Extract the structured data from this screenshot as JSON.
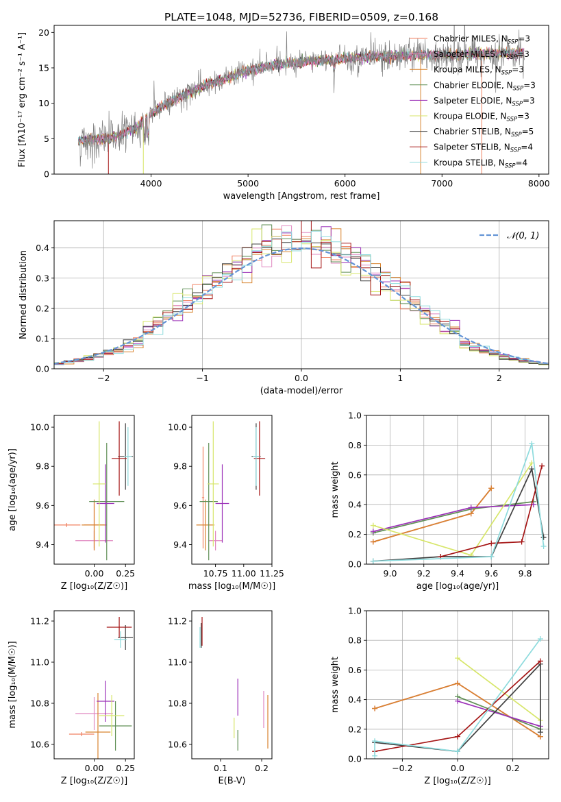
{
  "figure": {
    "title": "PLATE=1048, MJD=52736, FIBERID=0509, z=0.168"
  },
  "colors": {
    "chabrier_miles": "#f08060",
    "salpeter_miles": "#e087c0",
    "kroupa_miles": "#d8832e",
    "chabrier_elodie": "#5f8f55",
    "salpeter_elodie": "#9b30b8",
    "kroupa_elodie": "#d7e66a",
    "chabrier_stelib": "#404040",
    "salpeter_stelib": "#a51515",
    "kroupa_stelib": "#8ddbdd",
    "data_spectrum": "#808080",
    "normal_curve": "#6494d6"
  },
  "chart_data": [
    {
      "id": "spectrum",
      "type": "line",
      "xlabel": "wavelength [Angstrom, rest frame]",
      "ylabel": "Flux [fλ10⁻¹⁷ erg cm⁻² s⁻¹ A⁻¹]",
      "xlim": [
        3000,
        8100
      ],
      "ylim": [
        0,
        21
      ],
      "xticks": [
        4000,
        5000,
        6000,
        7000,
        8000
      ],
      "yticks": [
        0,
        5,
        10,
        15,
        20
      ],
      "legend_position": "top-right",
      "series": [
        {
          "name": "Chabrier MILES, N_SSP=3",
          "color_key": "chabrier_miles"
        },
        {
          "name": "Salpeter MILES, N_SSP=3",
          "color_key": "salpeter_miles"
        },
        {
          "name": "Kroupa MILES, N_SSP=3",
          "color_key": "kroupa_miles"
        },
        {
          "name": "Chabrier ELODIE, N_SSP=3",
          "color_key": "chabrier_elodie"
        },
        {
          "name": "Salpeter ELODIE, N_SSP=3",
          "color_key": "salpeter_elodie"
        },
        {
          "name": "Kroupa ELODIE, N_SSP=3",
          "color_key": "kroupa_elodie"
        },
        {
          "name": "Chabrier STELIB, N_SSP=5",
          "color_key": "chabrier_stelib"
        },
        {
          "name": "Salpeter STELIB, N_SSP=4",
          "color_key": "salpeter_stelib"
        },
        {
          "name": "Kroupa STELIB, N_SSP=4",
          "color_key": "kroupa_stelib"
        }
      ],
      "continuum": {
        "x": [
          3250,
          3400,
          3550,
          3700,
          3850,
          4000,
          4200,
          4400,
          4600,
          4800,
          5000,
          5200,
          5400,
          5600,
          5800,
          6000,
          6200,
          6400,
          6600,
          6800,
          7000,
          7200,
          7400,
          7600,
          7850
        ],
        "y": [
          4.6,
          4.9,
          5.0,
          5.6,
          6.6,
          8.6,
          10.3,
          11.5,
          12.8,
          13.6,
          14.6,
          15.2,
          15.6,
          15.8,
          16.1,
          16.3,
          16.5,
          16.6,
          16.7,
          16.8,
          16.8,
          16.9,
          17.0,
          17.0,
          17.1
        ]
      }
    },
    {
      "id": "residuals",
      "type": "histogram",
      "xlabel": "(data-model)/error",
      "ylabel": "Normed distribution",
      "xlim": [
        -2.5,
        2.5
      ],
      "ylim": [
        0,
        0.49
      ],
      "xticks": [
        -2,
        -1,
        0,
        1,
        2
      ],
      "yticks": [
        0.0,
        0.1,
        0.2,
        0.3,
        0.4
      ],
      "grid": true,
      "legend_position": "top-right",
      "reference_curve": {
        "name": "𝒩(0, 1)",
        "mean": 0,
        "sigma": 1
      },
      "bin_width": 0.1
    },
    {
      "id": "age_vs_Z",
      "type": "errorbar",
      "xlabel": "Z [log₁₀(Z/Z☉)]",
      "ylabel": "age  [log₁₀(age/yr)]",
      "xlim": [
        -0.32,
        0.32
      ],
      "ylim": [
        9.3,
        10.06
      ],
      "xticks": [
        0.0,
        0.25
      ],
      "yticks": [
        9.4,
        9.6,
        9.8,
        10.0
      ],
      "points": [
        {
          "key": "chabrier_miles",
          "x": 0.0,
          "xerr": 0.08,
          "y": 9.5,
          "yerr": 0.12
        },
        {
          "key": "salpeter_miles",
          "x": 0.0,
          "xerr": 0.15,
          "y": 9.42,
          "yerr": 0.05
        },
        {
          "key": "kroupa_miles",
          "x": 0.0,
          "xerr": 0.1,
          "y": 9.5,
          "yerr": 0.13
        },
        {
          "key": "chabrier_elodie",
          "x": 0.1,
          "xerr": 0.14,
          "y": 9.62,
          "yerr": 0.3
        },
        {
          "key": "salpeter_elodie",
          "x": 0.09,
          "xerr": 0.07,
          "y": 9.61,
          "yerr": 0.2
        },
        {
          "key": "kroupa_elodie",
          "x": 0.04,
          "xerr": 0.05,
          "y": 9.71,
          "yerr": 0.32
        },
        {
          "key": "chabrier_stelib",
          "x": 0.25,
          "xerr": 0.06,
          "y": 9.85,
          "yerr": 0.17
        },
        {
          "key": "salpeter_stelib",
          "x": 0.2,
          "xerr": 0.06,
          "y": 9.84,
          "yerr": 0.19
        },
        {
          "key": "kroupa_stelib",
          "x": 0.27,
          "xerr": 0.03,
          "y": 9.85,
          "yerr": 0.15
        },
        {
          "key": "chabrier_miles",
          "x": -0.22,
          "xerr": 0.11,
          "y": 9.5,
          "yerr": 0.01
        }
      ]
    },
    {
      "id": "age_vs_mass",
      "type": "errorbar",
      "xlabel": "mass [log₁₀(M/M☉)]",
      "ylabel": "",
      "xlim": [
        10.54,
        11.25
      ],
      "ylim": [
        9.3,
        10.06
      ],
      "xticks": [
        10.75,
        11.0,
        11.25
      ],
      "yticks": [
        9.4,
        9.6,
        9.8,
        10.0
      ],
      "points": [
        {
          "key": "chabrier_miles",
          "x": 10.64,
          "xerr": 0.01,
          "y": 9.64,
          "yerr": 0.26
        },
        {
          "key": "salpeter_miles",
          "x": 10.75,
          "xerr": 0.06,
          "y": 9.42,
          "yerr": 0.05
        },
        {
          "key": "kroupa_miles",
          "x": 10.66,
          "xerr": 0.08,
          "y": 9.5,
          "yerr": 0.13
        },
        {
          "key": "chabrier_elodie",
          "x": 10.69,
          "xerr": 0.08,
          "y": 9.62,
          "yerr": 0.3
        },
        {
          "key": "salpeter_elodie",
          "x": 10.81,
          "xerr": 0.06,
          "y": 9.61,
          "yerr": 0.2
        },
        {
          "key": "kroupa_elodie",
          "x": 10.73,
          "xerr": 0.05,
          "y": 9.71,
          "yerr": 0.32
        },
        {
          "key": "chabrier_stelib",
          "x": 11.11,
          "xerr": 0.04,
          "y": 9.85,
          "yerr": 0.17
        },
        {
          "key": "salpeter_stelib",
          "x": 11.14,
          "xerr": 0.05,
          "y": 9.84,
          "yerr": 0.19
        },
        {
          "key": "kroupa_stelib",
          "x": 11.11,
          "xerr": 0.03,
          "y": 9.85,
          "yerr": 0.15
        }
      ]
    },
    {
      "id": "weight_vs_age",
      "type": "line",
      "xlabel": "age  [log₁₀(age/yr)]",
      "ylabel": "mass weight",
      "xlim": [
        8.86,
        9.94
      ],
      "ylim": [
        0,
        1
      ],
      "xticks": [
        9.0,
        9.2,
        9.4,
        9.6,
        9.8
      ],
      "yticks": [
        0.0,
        0.2,
        0.4,
        0.6,
        0.8,
        1.0
      ],
      "grid": true,
      "series": [
        {
          "key": "chabrier_miles",
          "x": [
            8.9,
            9.48,
            9.6
          ],
          "y": [
            0.15,
            0.34,
            0.51
          ]
        },
        {
          "key": "salpeter_miles",
          "x": [
            8.9,
            9.48,
            9.6
          ],
          "y": [
            0.15,
            0.34,
            0.51
          ]
        },
        {
          "key": "kroupa_miles",
          "x": [
            8.9,
            9.48,
            9.6
          ],
          "y": [
            0.15,
            0.34,
            0.51
          ]
        },
        {
          "key": "chabrier_elodie",
          "x": [
            8.9,
            9.48,
            9.85
          ],
          "y": [
            0.21,
            0.37,
            0.42
          ]
        },
        {
          "key": "salpeter_elodie",
          "x": [
            8.9,
            9.48,
            9.85
          ],
          "y": [
            0.22,
            0.38,
            0.4
          ]
        },
        {
          "key": "kroupa_elodie",
          "x": [
            8.9,
            9.48,
            9.84
          ],
          "y": [
            0.26,
            0.06,
            0.68
          ]
        },
        {
          "key": "chabrier_stelib",
          "x": [
            8.9,
            9.3,
            9.6,
            9.84,
            9.91
          ],
          "y": [
            0.02,
            0.05,
            0.05,
            0.64,
            0.18
          ]
        },
        {
          "key": "salpeter_stelib",
          "x": [
            9.3,
            9.6,
            9.78,
            9.9
          ],
          "y": [
            0.05,
            0.14,
            0.15,
            0.66
          ]
        },
        {
          "key": "kroupa_stelib",
          "x": [
            8.9,
            9.6,
            9.84,
            9.91
          ],
          "y": [
            0.02,
            0.05,
            0.81,
            0.12
          ]
        }
      ]
    },
    {
      "id": "mass_vs_Z",
      "type": "errorbar",
      "xlabel": "Z [log₁₀(Z/Z☉)]",
      "ylabel": "mass [log₁₀(M/M☉)]",
      "xlim": [
        -0.32,
        0.32
      ],
      "ylim": [
        10.53,
        11.25
      ],
      "xticks": [
        0.0,
        0.25
      ],
      "yticks": [
        10.6,
        10.8,
        11.0,
        11.2
      ],
      "points": [
        {
          "key": "chabrier_miles",
          "x": -0.1,
          "xerr": 0.1,
          "y": 10.65,
          "yerr": 0.01
        },
        {
          "key": "salpeter_miles",
          "x": 0.0,
          "xerr": 0.15,
          "y": 10.75,
          "yerr": 0.08
        },
        {
          "key": "kroupa_miles",
          "x": 0.03,
          "xerr": 0.1,
          "y": 10.66,
          "yerr": 0.19
        },
        {
          "key": "chabrier_elodie",
          "x": 0.17,
          "xerr": 0.13,
          "y": 10.69,
          "yerr": 0.12
        },
        {
          "key": "salpeter_elodie",
          "x": 0.09,
          "xerr": 0.07,
          "y": 10.81,
          "yerr": 0.1
        },
        {
          "key": "kroupa_elodie",
          "x": 0.14,
          "xerr": 0.1,
          "y": 10.74,
          "yerr": 0.1
        },
        {
          "key": "chabrier_stelib",
          "x": 0.25,
          "xerr": 0.06,
          "y": 11.12,
          "yerr": 0.06
        },
        {
          "key": "salpeter_stelib",
          "x": 0.2,
          "xerr": 0.1,
          "y": 11.17,
          "yerr": 0.05
        },
        {
          "key": "kroupa_stelib",
          "x": 0.21,
          "xerr": 0.05,
          "y": 11.11,
          "yerr": 0.04
        }
      ]
    },
    {
      "id": "mass_vs_ebv",
      "type": "errorbar",
      "xlabel": "E(B-V)",
      "ylabel": "",
      "xlim": [
        0.03,
        0.225
      ],
      "ylim": [
        10.53,
        11.25
      ],
      "xticks": [
        0.1,
        0.2
      ],
      "yticks": [
        10.6,
        10.8,
        11.0,
        11.2
      ],
      "points": [
        {
          "key": "salpeter_miles",
          "x": 0.205,
          "xerr": 0.0,
          "y": 10.77,
          "yerr": 0.09
        },
        {
          "key": "kroupa_miles",
          "x": 0.215,
          "xerr": 0.0,
          "y": 10.71,
          "yerr": 0.13
        },
        {
          "key": "chabrier_elodie",
          "x": 0.142,
          "xerr": 0.0,
          "y": 10.62,
          "yerr": 0.05
        },
        {
          "key": "salpeter_elodie",
          "x": 0.142,
          "xerr": 0.0,
          "y": 10.83,
          "yerr": 0.09
        },
        {
          "key": "kroupa_elodie",
          "x": 0.133,
          "xerr": 0.0,
          "y": 10.68,
          "yerr": 0.05
        },
        {
          "key": "chabrier_stelib",
          "x": 0.053,
          "xerr": 0.0,
          "y": 11.13,
          "yerr": 0.06
        },
        {
          "key": "salpeter_stelib",
          "x": 0.055,
          "xerr": 0.0,
          "y": 11.15,
          "yerr": 0.07
        },
        {
          "key": "kroupa_stelib",
          "x": 0.05,
          "xerr": 0.0,
          "y": 11.12,
          "yerr": 0.05
        }
      ]
    },
    {
      "id": "weight_vs_Z",
      "type": "line",
      "xlabel": "Z [log₁₀(Z/Z☉)]",
      "ylabel": "mass weight",
      "xlim": [
        -0.33,
        0.33
      ],
      "ylim": [
        0,
        1
      ],
      "xticks": [
        -0.2,
        0.0,
        0.2
      ],
      "yticks": [
        0.0,
        0.2,
        0.4,
        0.6,
        0.8,
        1.0
      ],
      "grid": true,
      "series": [
        {
          "key": "chabrier_miles",
          "x": [
            -0.3,
            0.0,
            0.3
          ],
          "y": [
            0.34,
            0.51,
            0.15
          ]
        },
        {
          "key": "salpeter_miles",
          "x": [
            -0.3,
            0.0,
            0.3
          ],
          "y": [
            0.34,
            0.51,
            0.15
          ]
        },
        {
          "key": "kroupa_miles",
          "x": [
            -0.3,
            0.0,
            0.3
          ],
          "y": [
            0.34,
            0.51,
            0.15
          ]
        },
        {
          "key": "chabrier_elodie",
          "x": [
            0.0,
            0.3
          ],
          "y": [
            0.42,
            0.2
          ]
        },
        {
          "key": "salpeter_elodie",
          "x": [
            0.0,
            0.3
          ],
          "y": [
            0.39,
            0.22
          ]
        },
        {
          "key": "kroupa_elodie",
          "x": [
            0.0,
            0.3
          ],
          "y": [
            0.68,
            0.26
          ]
        },
        {
          "key": "chabrier_stelib",
          "x": [
            -0.3,
            0.0,
            0.3,
            0.3
          ],
          "y": [
            0.11,
            0.05,
            0.64,
            0.18
          ]
        },
        {
          "key": "salpeter_stelib",
          "x": [
            -0.3,
            0.0,
            0.3
          ],
          "y": [
            0.05,
            0.15,
            0.66
          ]
        },
        {
          "key": "kroupa_stelib",
          "x": [
            -0.3,
            -0.3,
            0.0,
            0.3
          ],
          "y": [
            0.02,
            0.12,
            0.05,
            0.81
          ]
        }
      ]
    }
  ]
}
